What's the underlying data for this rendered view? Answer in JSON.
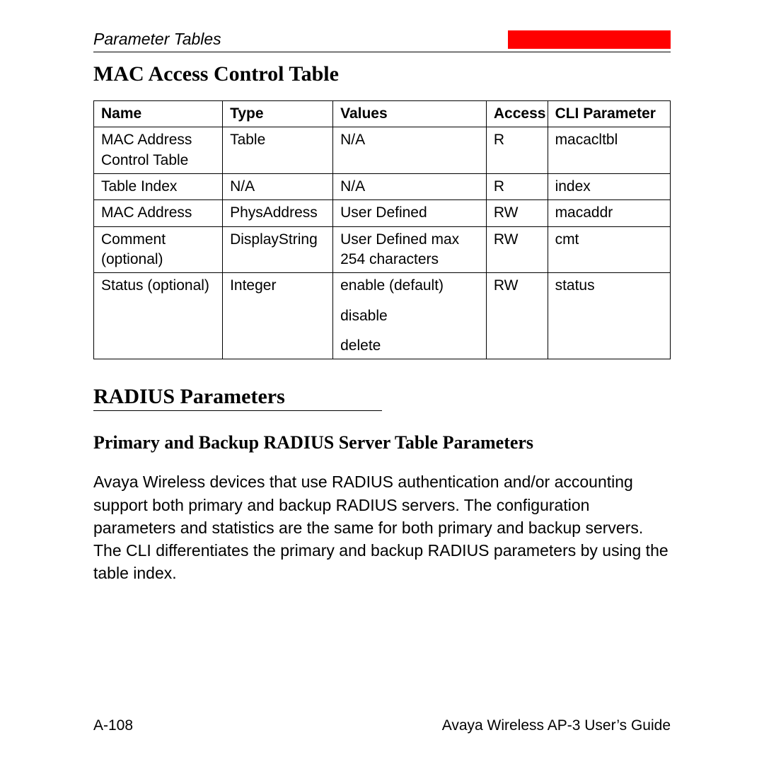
{
  "header": {
    "section": "Parameter Tables",
    "red_block_color": "#ff0000"
  },
  "title1": "MAC Access Control Table",
  "table": {
    "headers": {
      "name": "Name",
      "type": "Type",
      "values": "Values",
      "access": "Access",
      "cli": "CLI Parameter"
    },
    "rows": [
      {
        "name": "MAC Address Control Table",
        "type": "Table",
        "values": "N/A",
        "access": "R",
        "cli": "macacltbl"
      },
      {
        "name": "Table Index",
        "type": "N/A",
        "values": "N/A",
        "access": "R",
        "cli": "index"
      },
      {
        "name": "MAC Address",
        "type": "PhysAddress",
        "values": "User Defined",
        "access": "RW",
        "cli": "macaddr"
      },
      {
        "name": "Comment (optional)",
        "type": "DisplayString",
        "values": "User Defined max 254 characters",
        "access": "RW",
        "cli": "cmt"
      },
      {
        "name": "Status (optional)",
        "type": "Integer",
        "values_multi": [
          "enable (default)",
          "disable",
          "delete"
        ],
        "access": "RW",
        "cli": "status"
      }
    ]
  },
  "title2": "RADIUS Parameters",
  "title3": "Primary and Backup RADIUS Server Table Parameters",
  "paragraph": "Avaya Wireless devices that use RADIUS authentication and/or accounting support both primary and backup RADIUS servers. The configuration parameters and statistics are the same for both primary and backup servers. The CLI differentiates the primary and backup RADIUS parameters by using the table index.",
  "footer": {
    "left": "A-108",
    "right": "Avaya Wireless AP-3 User’s Guide"
  }
}
